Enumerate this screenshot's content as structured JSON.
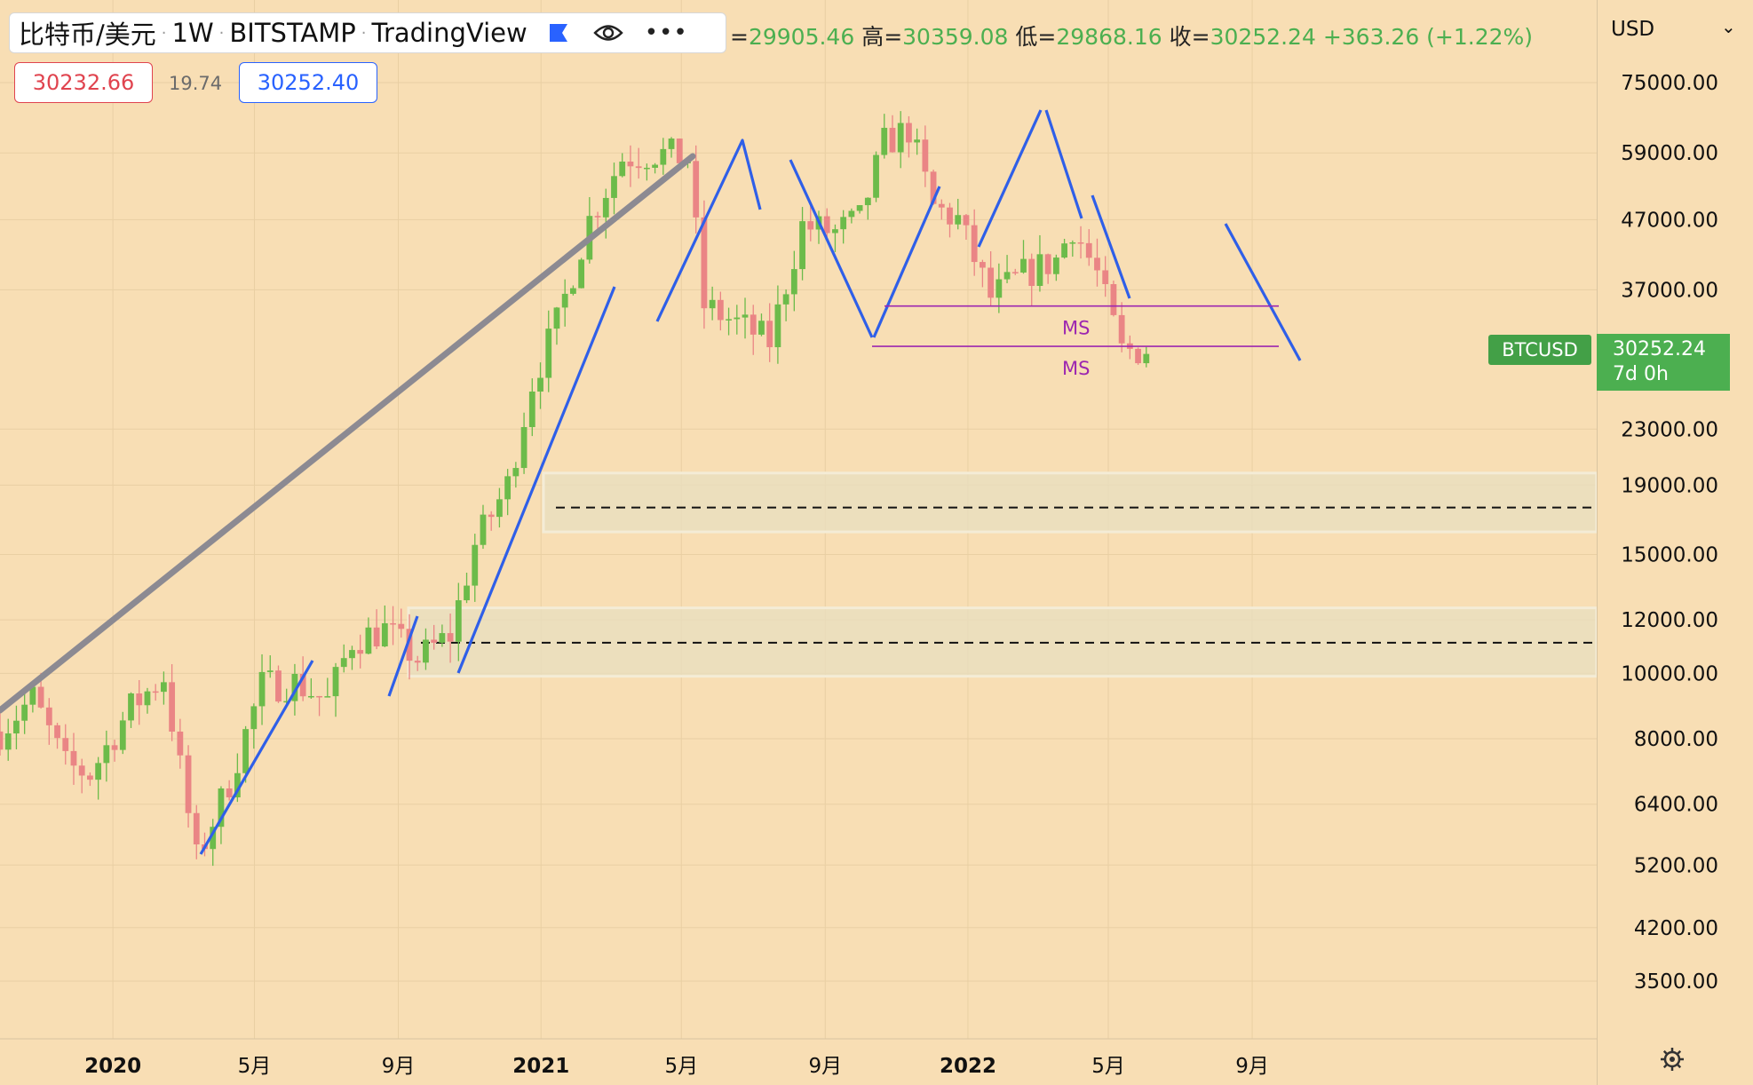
{
  "header": {
    "symbol": "比特币/美元",
    "interval": "1W",
    "exchange": "BITSTAMP",
    "platform": "TradingView"
  },
  "ohlc": {
    "open_value": "29905.46",
    "high_label": "高=",
    "high_value": "30359.08",
    "low_label": "低=",
    "low_value": "29868.16",
    "close_label": "收=",
    "close_value": "30252.24",
    "change": "+363.26 (+1.22%)"
  },
  "trade": {
    "sell_price": "30232.66",
    "spread": "19.74",
    "buy_price": "30252.40"
  },
  "price_axis": {
    "currency": "USD"
  },
  "last_price": {
    "symbol": "BTCUSD",
    "price": "30252.24",
    "countdown": "7d 0h"
  },
  "colors": {
    "background": "#f8deb4",
    "up": "#6cbb4a",
    "down": "#ea8585",
    "trend_line": "#2f5fe8",
    "long_trend": "#8c8a92",
    "ms_line": "#9c27b0",
    "zone": "#e8dfc0"
  },
  "icons": [
    "flag-icon",
    "eye-icon",
    "more-icon",
    "gear-icon"
  ],
  "chart_data": {
    "type": "candlestick",
    "scale": "log",
    "y_ticks": [
      75000,
      59000,
      47000,
      37000,
      23000,
      19000,
      15000,
      12000,
      10000,
      8000,
      6400,
      5200,
      4200,
      3500
    ],
    "x_ticks": [
      "2020",
      "5月",
      "9月",
      "2021",
      "5月",
      "9月",
      "2022",
      "5月",
      "9月"
    ],
    "grid": true,
    "annotations": [
      {
        "label": "MS",
        "price": 35000
      },
      {
        "label": "MS",
        "price": 30500
      }
    ],
    "zones": [
      {
        "low": 16200,
        "high": 19800,
        "mid": 17600
      },
      {
        "low": 9900,
        "high": 12500,
        "mid": 11100
      }
    ]
  }
}
